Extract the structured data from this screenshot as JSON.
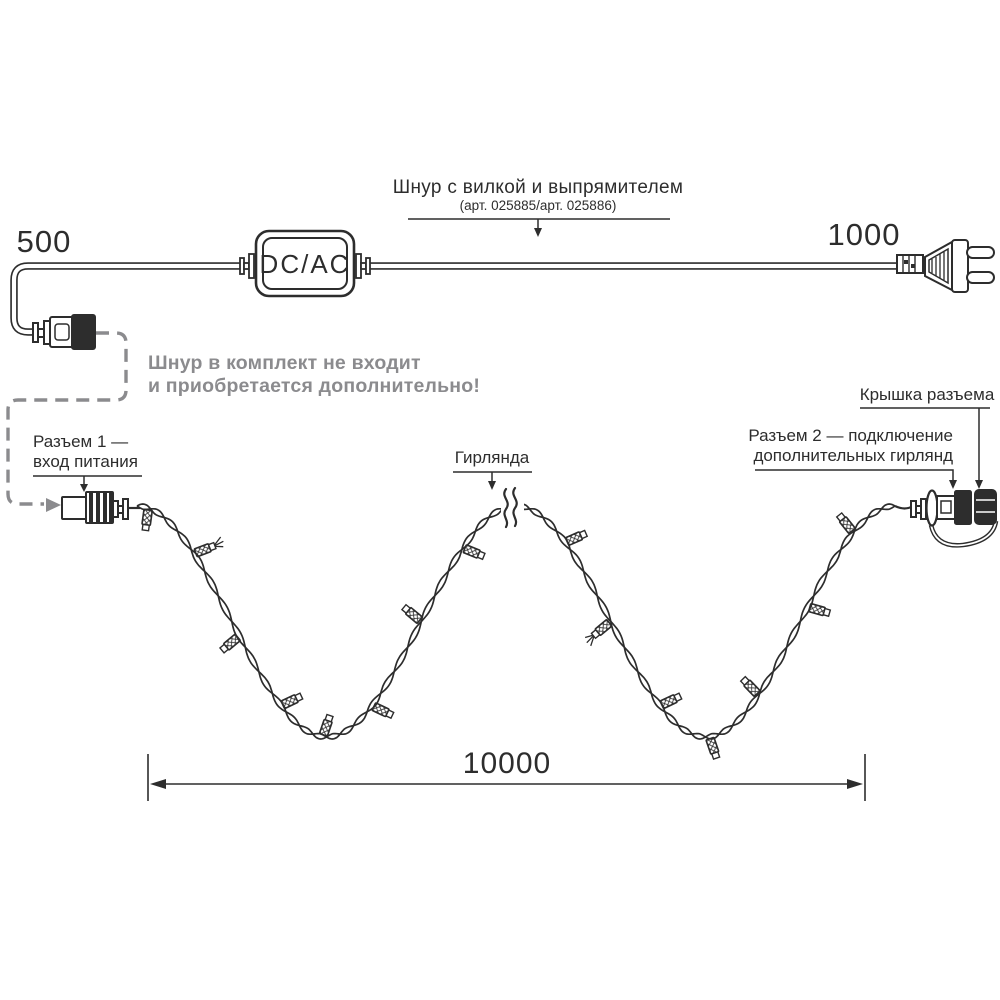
{
  "diagram": {
    "cord_label": {
      "text": "Шнур с вилкой и выпрямителем",
      "subtext": "(арт. 025885/арт. 025886)"
    },
    "dimensions": {
      "left_cord_mm": "500",
      "right_cord_mm": "1000",
      "garland_length_mm": "10000"
    },
    "converter_label": "DC/AC",
    "note": {
      "line1": "Шнур в комплект не входит",
      "line2": "и приобретается дополнительно!"
    },
    "connector1_label": {
      "line1": "Разъем 1 —",
      "line2": "вход питания"
    },
    "garland_label": "Гирлянда",
    "connector2_label": {
      "line1": "Разъем 2 — подключение",
      "line2": "дополнительных гирлянд"
    },
    "cap_label": "Крышка разъема"
  },
  "colors": {
    "line": "#2d2d2d",
    "note_gray": "#8b8b8e",
    "background": "#ffffff"
  }
}
